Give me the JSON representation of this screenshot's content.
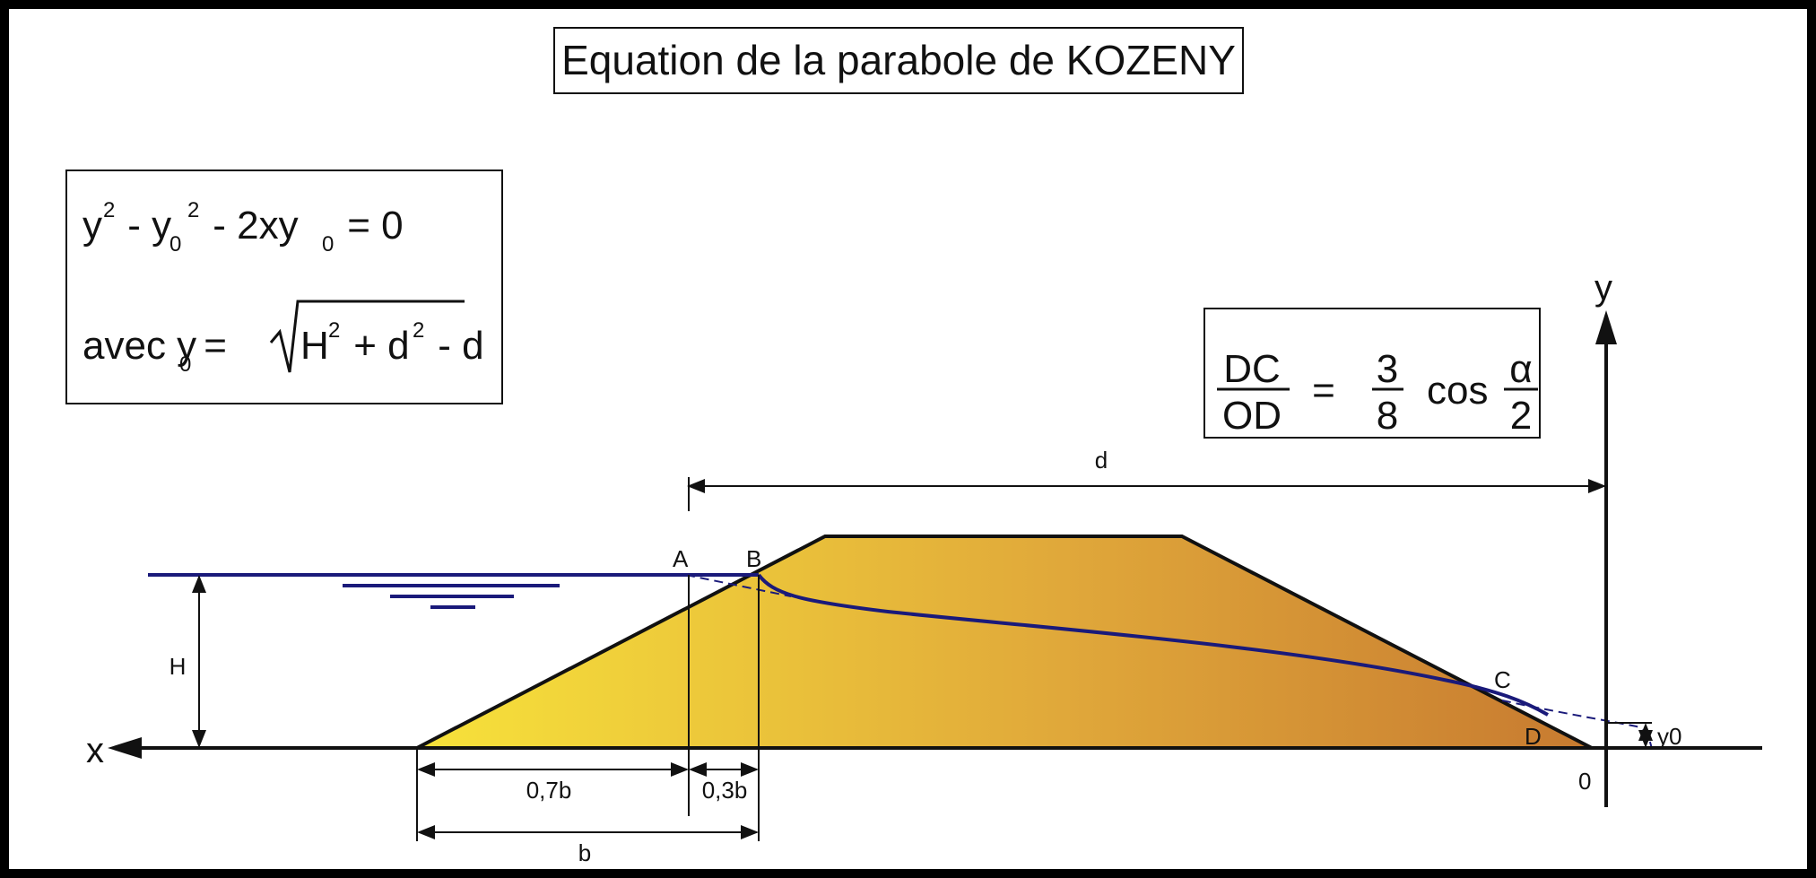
{
  "title": "Equation de la parabole de KOZENY",
  "formula_box": {
    "line1": {
      "y": "y",
      "sup2a": "2",
      "minus1": " - y",
      "sub0a": "0",
      "sup2b": "2",
      "rest": " - 2xy",
      "sub0b": "0",
      "eq": " = 0"
    },
    "line2": {
      "avec": "avec y",
      "sub0": "0",
      "eq": " = ",
      "H": "H",
      "sup2a": "2",
      "plus": " + d",
      "sup2b": "2",
      "minus": " - d"
    }
  },
  "ratio_box": {
    "num": "DC",
    "den": "OD",
    "eq": "=",
    "frac_num": "3",
    "frac_den": "8",
    "cos": "cos",
    "alpha": "α",
    "alpha_den": "2"
  },
  "labels": {
    "x_axis": "x",
    "y_axis": "y",
    "origin": "0",
    "point_A": "A",
    "point_B": "B",
    "point_C": "C",
    "point_D": "D",
    "dim_d": "d",
    "dim_H": "H",
    "dim_y0": "y0",
    "dim_07b": "0,7b",
    "dim_03b": "0,3b",
    "dim_b": "b"
  },
  "colors": {
    "water": "#1a1a7a",
    "dam_left": "#f7e23a",
    "dam_mid": "#e0a83a",
    "dam_right": "#c77a30",
    "line": "#111111"
  }
}
